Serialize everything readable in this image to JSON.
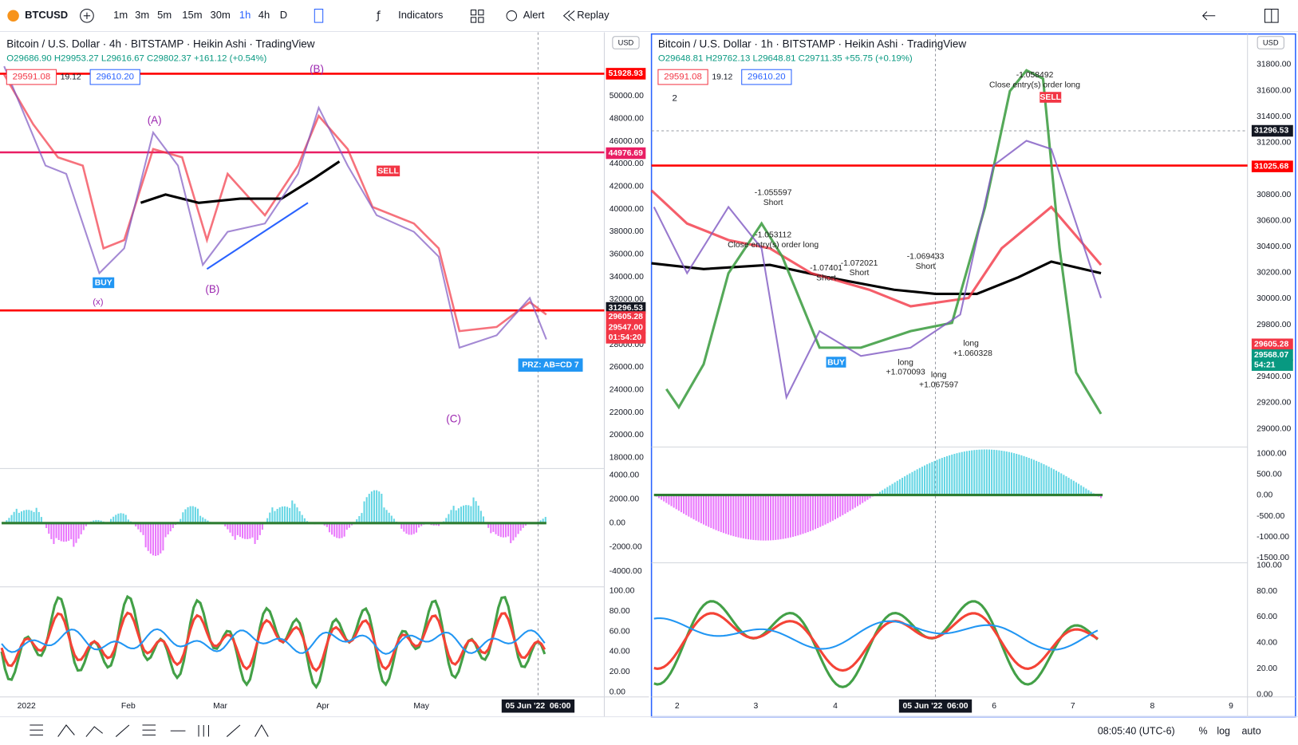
{
  "toolbar": {
    "symbol": "BTCUSD",
    "intervals": [
      "1m",
      "3m",
      "5m",
      "15m",
      "30m",
      "1h",
      "4h",
      "D"
    ],
    "indicators": "Indicators",
    "alert": "Alert",
    "replay": "Replay"
  },
  "left_chart": {
    "title": "Bitcoin / U.S. Dollar · 4h · BITSTAMP · Heikin Ashi · TradingView",
    "ohlc": "O29686.90 H29953.27 L29616.67 C29802.37 +161.12 (+0.54%)",
    "bid": "29591.08",
    "spread": "19.12",
    "ask": "29610.20",
    "currency": "USD",
    "price_axis": [
      "50000.00",
      "48000.00",
      "46000.00",
      "44000.00",
      "42000.00",
      "40000.00",
      "38000.00",
      "36000.00",
      "34000.00",
      "32000.00",
      "30000.00",
      "28000.00",
      "26000.00",
      "24000.00",
      "22000.00",
      "20000.00",
      "18000.00"
    ],
    "price_tags": [
      "51928.93",
      "44976.69",
      "31296.53",
      "29605.28",
      "29547.00",
      "01:54:20"
    ],
    "osc_axis": [
      "4000.00",
      "2000.00",
      "0.00",
      "-2000.00",
      "-4000.00"
    ],
    "rsi_axis": [
      "100.00",
      "80.00",
      "60.00",
      "40.00",
      "20.00",
      "0.00"
    ],
    "time_axis": [
      "2022",
      "Feb",
      "Mar",
      "Apr",
      "May"
    ],
    "crosshair_time": "05 Jun '22  06:00",
    "annotations": [
      "PRZ: AB=CD 7",
      "(B)",
      "(x)",
      "(A)",
      "(B)",
      "(C)",
      "SELL",
      "BUY"
    ]
  },
  "right_chart": {
    "title": "Bitcoin / U.S. Dollar · 1h · BITSTAMP · Heikin Ashi · TradingView",
    "ohlc": "O29648.81 H29762.13 L29648.81 C29711.35 +55.75 (+0.19%)",
    "bid": "29591.08",
    "spread": "19.12",
    "ask": "29610.20",
    "currency": "USD",
    "layers": "2",
    "price_axis": [
      "31800.00",
      "31600.00",
      "31400.00",
      "31200.00",
      "31000.00",
      "30800.00",
      "30600.00",
      "30400.00",
      "30200.00",
      "30000.00",
      "29800.00",
      "29600.00",
      "29400.00",
      "29200.00",
      "29000.00"
    ],
    "price_tags": [
      "31296.53",
      "31025.68",
      "29605.28",
      "29568.07",
      "54:21"
    ],
    "osc_axis": [
      "1000.00",
      "500.00",
      "0.00",
      "-500.00",
      "-1000.00",
      "-1500.00"
    ],
    "rsi_axis": [
      "100.00",
      "80.00",
      "60.00",
      "40.00",
      "20.00",
      "0.00"
    ],
    "time_axis": [
      "2",
      "3",
      "4",
      "6",
      "7",
      "8",
      "9"
    ],
    "crosshair_time": "05 Jun '22  06:00",
    "annotations": [
      "-1.055597",
      "Short",
      "-1.053112",
      "Close entry(s) order long",
      "-1.07401",
      "Short",
      "-1.072021",
      "Short",
      "-1.069433",
      "Short",
      "-1.058492",
      "Close entry(s) order long",
      "long",
      "+1.060328",
      "long",
      "+1.070093",
      "long",
      "+1.067597",
      "SELL",
      "BUY"
    ]
  },
  "status_bar": {
    "clock": "08:05:40 (UTC-6)",
    "percent": "%",
    "log": "log",
    "auto": "auto"
  }
}
